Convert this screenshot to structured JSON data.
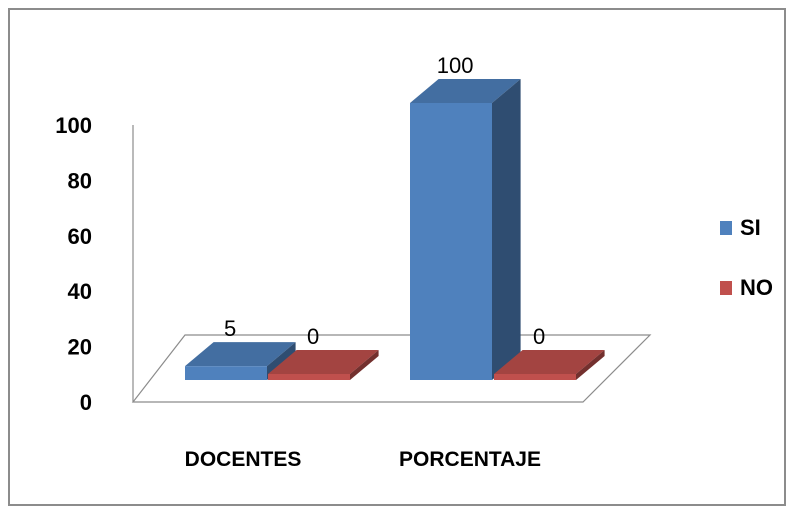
{
  "chart_data": {
    "type": "bar",
    "categories": [
      "DOCENTES",
      "PORCENTAJE"
    ],
    "series": [
      {
        "name": "SI",
        "values": [
          5,
          100
        ],
        "color": "#4f81bd"
      },
      {
        "name": "NO",
        "values": [
          0,
          0
        ],
        "color": "#c0504d"
      }
    ],
    "ylim": [
      0,
      100
    ],
    "yticks": [
      "0",
      "20",
      "40",
      "60",
      "80",
      "100"
    ],
    "data_labels": [
      [
        "5",
        "100"
      ],
      [
        "0",
        "0"
      ]
    ],
    "legend_position": "right",
    "grid": false,
    "style": "3d-clustered-column"
  }
}
